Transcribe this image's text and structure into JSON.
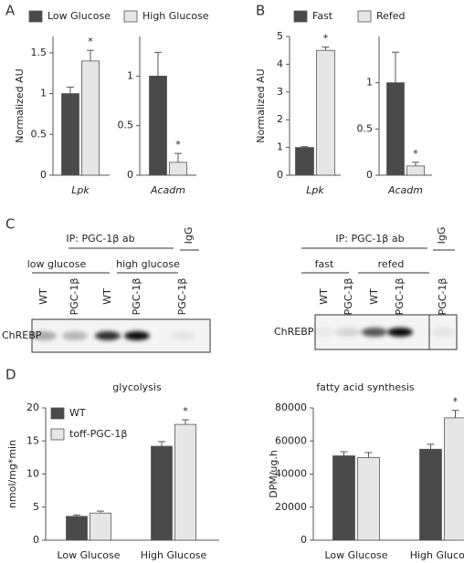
{
  "panel_labels": [
    "A",
    "B",
    "C",
    "D"
  ],
  "chart_data": [
    {
      "type": "bar",
      "y_label": "Normalized AU",
      "categories": [
        "Lpk"
      ],
      "series": [
        {
          "name": "Low Glucose",
          "color": "#4a4a4a",
          "values": [
            1.0
          ],
          "errors": [
            0.08
          ]
        },
        {
          "name": "High Glucose",
          "color": "#e6e6e6",
          "values": [
            1.4
          ],
          "errors": [
            0.13
          ]
        }
      ],
      "ylim": [
        0,
        1.7
      ],
      "yticks": [
        0,
        0.5,
        1,
        1.5
      ],
      "annotations": [
        {
          "text": "*",
          "series": 1,
          "category": 0
        }
      ]
    },
    {
      "type": "bar",
      "categories": [
        "Acadm"
      ],
      "series": [
        {
          "color": "#4a4a4a",
          "values": [
            1.0
          ],
          "errors": [
            0.24
          ]
        },
        {
          "color": "#e6e6e6",
          "values": [
            0.13
          ],
          "errors": [
            0.09
          ]
        }
      ],
      "ylim": [
        0,
        1.4
      ],
      "yticks": [
        0,
        0.5,
        1
      ],
      "annotations": [
        {
          "text": "*",
          "series": 1,
          "category": 0
        }
      ]
    },
    {
      "type": "bar",
      "y_label": "Normalized AU",
      "categories": [
        "Lpk"
      ],
      "series": [
        {
          "name": "Fast",
          "color": "#4a4a4a",
          "values": [
            1.0
          ],
          "errors": [
            0.03
          ]
        },
        {
          "name": "Refed",
          "color": "#e6e6e6",
          "values": [
            4.5
          ],
          "errors": [
            0.12
          ]
        }
      ],
      "ylim": [
        0,
        5
      ],
      "yticks": [
        0,
        1,
        2,
        3,
        4,
        5
      ],
      "annotations": [
        {
          "text": "*",
          "series": 1,
          "category": 0
        }
      ]
    },
    {
      "type": "bar",
      "categories": [
        "Acadm"
      ],
      "series": [
        {
          "color": "#4a4a4a",
          "values": [
            1.0
          ],
          "errors": [
            0.33
          ]
        },
        {
          "color": "#e6e6e6",
          "values": [
            0.1
          ],
          "errors": [
            0.04
          ]
        }
      ],
      "ylim": [
        0,
        1.5
      ],
      "yticks": [
        0,
        0.5,
        1
      ],
      "annotations": [
        {
          "text": "*",
          "series": 1,
          "category": 0
        }
      ]
    },
    {
      "type": "bar",
      "title": "glycolysis",
      "y_label": "nmol/mg*min",
      "categories": [
        "Low Glucose",
        "High Glucose"
      ],
      "series": [
        {
          "name": "WT",
          "color": "#4a4a4a",
          "values": [
            3.6,
            14.2
          ],
          "errors": [
            0.2,
            0.7
          ]
        },
        {
          "name": "toff-PGC-1β",
          "color": "#e6e6e6",
          "values": [
            4.1,
            17.5
          ],
          "errors": [
            0.3,
            0.7
          ]
        }
      ],
      "ylim": [
        0,
        20
      ],
      "yticks": [
        0,
        5,
        10,
        15,
        20
      ],
      "annotations": [
        {
          "text": "*",
          "series": 1,
          "category": 1
        }
      ]
    },
    {
      "type": "bar",
      "title": "fatty acid synthesis",
      "y_label": "DPM/ug.h",
      "categories": [
        "Low Glucose",
        "High Glucose"
      ],
      "series": [
        {
          "color": "#4a4a4a",
          "values": [
            51000,
            55000
          ],
          "errors": [
            2500,
            3000
          ]
        },
        {
          "color": "#e6e6e6",
          "values": [
            50000,
            74000
          ],
          "errors": [
            3000,
            4500
          ]
        }
      ],
      "ylim": [
        0,
        80000
      ],
      "yticks": [
        0,
        20000,
        40000,
        60000,
        80000
      ],
      "annotations": [
        {
          "text": "*",
          "series": 1,
          "category": 1
        }
      ]
    }
  ],
  "blots": [
    {
      "ip_label": "IP: PGC-1β ab",
      "control_label": "IgG",
      "groups": [
        "low glucose",
        "high glucose"
      ],
      "lanes": [
        "WT",
        "PGC-1β",
        "WT",
        "PGC-1β",
        "PGC-1β"
      ],
      "protein": "ChREBP"
    },
    {
      "ip_label": "IP: PGC-1β ab",
      "control_label": "IgG",
      "groups": [
        "fast",
        "refed"
      ],
      "lanes": [
        "WT",
        "PGC-1β",
        "WT",
        "PGC-1β",
        "PGC-1β"
      ],
      "protein": "ChREBP"
    }
  ]
}
